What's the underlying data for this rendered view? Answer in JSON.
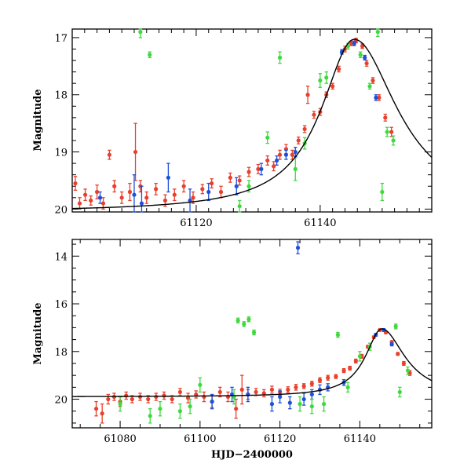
{
  "figure": {
    "xlabel": "HJD−2400000",
    "colors": {
      "red": "#e8402c",
      "blue": "#1e50d8",
      "green": "#3fd93f",
      "model": "#000000"
    }
  },
  "chart_data": [
    {
      "type": "scatter",
      "panel": "top",
      "title": "",
      "xlabel": "",
      "ylabel": "Magnitude",
      "xlim": [
        61100,
        61158
      ],
      "ylim": [
        20.05,
        16.85
      ],
      "x_ticks": [
        61120,
        61140
      ],
      "y_ticks": [
        17,
        18,
        19,
        20
      ],
      "y_tick_labels": [
        "17",
        "18",
        "19",
        "20"
      ],
      "x_tick_labels": [
        "61120",
        "61140"
      ],
      "model": {
        "baseline": 20.05,
        "peak_x": 61145.5,
        "peak_mag": 17.03,
        "rise_tau": 6.5,
        "decay_tau": 8.5,
        "amplitude": 3.02
      },
      "series": [
        {
          "name": "red",
          "color": "#e8402c",
          "points": [
            [
              61100.5,
              19.55,
              0.12
            ],
            [
              61101.2,
              19.9,
              0.1
            ],
            [
              61102.1,
              19.75,
              0.1
            ],
            [
              61103.0,
              19.85,
              0.08
            ],
            [
              61104.0,
              19.7,
              0.12
            ],
            [
              61105.0,
              19.9,
              0.1
            ],
            [
              61106.0,
              19.05,
              0.08
            ],
            [
              61106.8,
              19.6,
              0.1
            ],
            [
              61108.0,
              19.8,
              0.1
            ],
            [
              61109.3,
              19.7,
              0.15
            ],
            [
              61110.2,
              19.0,
              0.5
            ],
            [
              61111.0,
              19.6,
              0.1
            ],
            [
              61112.0,
              19.8,
              0.1
            ],
            [
              61113.5,
              19.65,
              0.1
            ],
            [
              61115.0,
              19.85,
              0.1
            ],
            [
              61116.5,
              19.75,
              0.1
            ],
            [
              61118.0,
              19.6,
              0.1
            ],
            [
              61119.5,
              19.8,
              0.1
            ],
            [
              61121.0,
              19.65,
              0.08
            ],
            [
              61122.5,
              19.55,
              0.08
            ],
            [
              61124.0,
              19.7,
              0.1
            ],
            [
              61125.5,
              19.45,
              0.08
            ],
            [
              61127.0,
              19.5,
              0.08
            ],
            [
              61128.5,
              19.35,
              0.08
            ],
            [
              61130.0,
              19.3,
              0.08
            ],
            [
              61131.5,
              19.15,
              0.08
            ],
            [
              61132.5,
              19.25,
              0.08
            ],
            [
              61133.5,
              19.05,
              0.08
            ],
            [
              61134.5,
              18.95,
              0.08
            ],
            [
              61135.5,
              19.05,
              0.08
            ],
            [
              61136.5,
              18.8,
              0.06
            ],
            [
              61137.5,
              18.6,
              0.06
            ],
            [
              61138.0,
              18.0,
              0.15
            ],
            [
              61139.0,
              18.35,
              0.06
            ],
            [
              61140.0,
              18.3,
              0.06
            ],
            [
              61141.0,
              18.0,
              0.05
            ],
            [
              61142.0,
              17.85,
              0.05
            ],
            [
              61143.0,
              17.55,
              0.05
            ],
            [
              61144.0,
              17.2,
              0.05
            ],
            [
              61145.0,
              17.1,
              0.04
            ],
            [
              61145.8,
              17.05,
              0.04
            ],
            [
              61146.8,
              17.15,
              0.04
            ],
            [
              61147.5,
              17.45,
              0.05
            ],
            [
              61148.5,
              17.75,
              0.05
            ],
            [
              61149.5,
              18.05,
              0.05
            ],
            [
              61150.5,
              18.4,
              0.06
            ],
            [
              61151.5,
              18.65,
              0.08
            ]
          ]
        },
        {
          "name": "blue",
          "color": "#1e50d8",
          "points": [
            [
              61104.5,
              19.8,
              0.1
            ],
            [
              61110.0,
              19.75,
              0.35
            ],
            [
              61111.2,
              19.9,
              0.3
            ],
            [
              61115.5,
              19.45,
              0.25
            ],
            [
              61119.0,
              19.85,
              0.2
            ],
            [
              61122.0,
              19.7,
              0.15
            ],
            [
              61126.5,
              19.6,
              0.15
            ],
            [
              61130.5,
              19.3,
              0.1
            ],
            [
              61133.0,
              19.15,
              0.08
            ],
            [
              61134.5,
              19.05,
              0.08
            ],
            [
              61136.0,
              19.0,
              0.08
            ],
            [
              61143.5,
              17.25,
              0.04
            ],
            [
              61145.5,
              17.1,
              0.04
            ],
            [
              61147.2,
              17.35,
              0.04
            ],
            [
              61149.0,
              18.05,
              0.05
            ]
          ]
        },
        {
          "name": "green",
          "color": "#3fd93f",
          "points": [
            [
              61111.0,
              16.9,
              0.1
            ],
            [
              61112.5,
              17.3,
              0.05
            ],
            [
              61127.0,
              19.95,
              0.1
            ],
            [
              61128.5,
              19.6,
              0.1
            ],
            [
              61131.5,
              18.75,
              0.1
            ],
            [
              61133.5,
              17.35,
              0.1
            ],
            [
              61136.0,
              19.3,
              0.2
            ],
            [
              61137.5,
              18.85,
              0.1
            ],
            [
              61140.0,
              17.75,
              0.12
            ],
            [
              61141.0,
              17.7,
              0.1
            ],
            [
              61144.5,
              17.15,
              0.05
            ],
            [
              61146.5,
              17.3,
              0.05
            ],
            [
              61148.0,
              17.85,
              0.05
            ],
            [
              61149.3,
              16.9,
              0.08
            ],
            [
              61150.0,
              19.7,
              0.15
            ],
            [
              61150.8,
              18.65,
              0.08
            ],
            [
              61151.8,
              18.8,
              0.08
            ]
          ]
        }
      ]
    },
    {
      "type": "scatter",
      "panel": "bottom",
      "title": "",
      "xlabel": "HJD−2400000",
      "ylabel": "Magnitude",
      "xlim": [
        61068,
        61158
      ],
      "ylim": [
        21.2,
        13.3
      ],
      "x_ticks": [
        61080,
        61100,
        61120,
        61140
      ],
      "y_ticks": [
        14,
        16,
        18,
        20
      ],
      "y_tick_labels": [
        "14",
        "16",
        "18",
        "20"
      ],
      "x_tick_labels": [
        "61080",
        "61100",
        "61120",
        "61140"
      ],
      "model": {
        "baseline": 19.9,
        "peak_x": 61145.5,
        "peak_mag": 17.05,
        "rise_tau": 5.0,
        "decay_tau": 7.0,
        "amplitude": 2.85
      },
      "series": [
        {
          "name": "red",
          "color": "#e8402c",
          "points": [
            [
              61074.0,
              20.4,
              0.3
            ],
            [
              61075.5,
              20.6,
              0.4
            ],
            [
              61077.0,
              20.0,
              0.2
            ],
            [
              61078.5,
              19.9,
              0.15
            ],
            [
              61080.0,
              20.1,
              0.2
            ],
            [
              61081.5,
              19.85,
              0.15
            ],
            [
              61083.0,
              20.0,
              0.15
            ],
            [
              61085.0,
              19.9,
              0.15
            ],
            [
              61087.0,
              20.0,
              0.15
            ],
            [
              61089.0,
              19.9,
              0.15
            ],
            [
              61091.0,
              19.85,
              0.15
            ],
            [
              61093.0,
              20.0,
              0.15
            ],
            [
              61095.0,
              19.7,
              0.15
            ],
            [
              61097.0,
              19.95,
              0.2
            ],
            [
              61099.0,
              19.8,
              0.15
            ],
            [
              61101.0,
              19.9,
              0.2
            ],
            [
              61103.0,
              20.1,
              0.25
            ],
            [
              61105.0,
              19.7,
              0.2
            ],
            [
              61107.0,
              19.9,
              0.2
            ],
            [
              61109.0,
              20.4,
              0.4
            ],
            [
              61110.5,
              19.6,
              0.6
            ],
            [
              61112.0,
              19.8,
              0.2
            ],
            [
              61114.0,
              19.7,
              0.15
            ],
            [
              61116.0,
              19.75,
              0.15
            ],
            [
              61118.0,
              19.6,
              0.15
            ],
            [
              61120.0,
              19.7,
              0.12
            ],
            [
              61122.0,
              19.6,
              0.12
            ],
            [
              61124.0,
              19.5,
              0.12
            ],
            [
              61126.0,
              19.45,
              0.1
            ],
            [
              61128.0,
              19.35,
              0.1
            ],
            [
              61130.0,
              19.2,
              0.1
            ],
            [
              61132.0,
              19.1,
              0.1
            ],
            [
              61134.0,
              19.05,
              0.08
            ],
            [
              61136.0,
              18.8,
              0.08
            ],
            [
              61137.5,
              18.7,
              0.08
            ],
            [
              61139.0,
              18.4,
              0.08
            ],
            [
              61140.5,
              18.2,
              0.08
            ],
            [
              61142.0,
              17.8,
              0.06
            ],
            [
              61143.5,
              17.4,
              0.05
            ],
            [
              61145.0,
              17.1,
              0.05
            ],
            [
              61146.5,
              17.2,
              0.05
            ],
            [
              61148.0,
              17.6,
              0.05
            ],
            [
              61149.5,
              18.1,
              0.06
            ],
            [
              61151.0,
              18.5,
              0.08
            ],
            [
              61152.5,
              18.9,
              0.1
            ]
          ]
        },
        {
          "name": "blue",
          "color": "#1e50d8",
          "points": [
            [
              61103.0,
              20.1,
              0.3
            ],
            [
              61108.0,
              19.8,
              0.3
            ],
            [
              61112.0,
              19.8,
              0.3
            ],
            [
              61118.0,
              20.2,
              0.3
            ],
            [
              61120.0,
              19.9,
              0.25
            ],
            [
              61122.5,
              20.15,
              0.25
            ],
            [
              61124.5,
              13.65,
              0.25
            ],
            [
              61126.0,
              20.0,
              0.25
            ],
            [
              61128.0,
              19.8,
              0.2
            ],
            [
              61130.0,
              19.6,
              0.2
            ],
            [
              61132.0,
              19.5,
              0.15
            ],
            [
              61136.0,
              19.3,
              0.12
            ],
            [
              61144.0,
              17.3,
              0.06
            ],
            [
              61146.0,
              17.1,
              0.06
            ],
            [
              61148.0,
              17.7,
              0.06
            ]
          ]
        },
        {
          "name": "green",
          "color": "#3fd93f",
          "points": [
            [
              61080.0,
              20.2,
              0.3
            ],
            [
              61087.5,
              20.7,
              0.3
            ],
            [
              61090.0,
              20.4,
              0.3
            ],
            [
              61095.0,
              20.5,
              0.3
            ],
            [
              61097.5,
              20.3,
              0.3
            ],
            [
              61100.0,
              19.4,
              0.3
            ],
            [
              61108.5,
              19.9,
              0.3
            ],
            [
              61109.5,
              16.7,
              0.1
            ],
            [
              61111.0,
              16.85,
              0.1
            ],
            [
              61112.2,
              16.65,
              0.1
            ],
            [
              61113.5,
              17.2,
              0.1
            ],
            [
              61125.0,
              20.2,
              0.3
            ],
            [
              61128.0,
              20.3,
              0.3
            ],
            [
              61131.0,
              20.2,
              0.3
            ],
            [
              61134.5,
              17.3,
              0.1
            ],
            [
              61137.0,
              19.5,
              0.2
            ],
            [
              61140.0,
              18.2,
              0.2
            ],
            [
              61142.5,
              17.8,
              0.15
            ],
            [
              61149.0,
              16.95,
              0.1
            ],
            [
              61150.0,
              19.7,
              0.2
            ],
            [
              61152.0,
              18.8,
              0.15
            ]
          ]
        }
      ]
    }
  ]
}
